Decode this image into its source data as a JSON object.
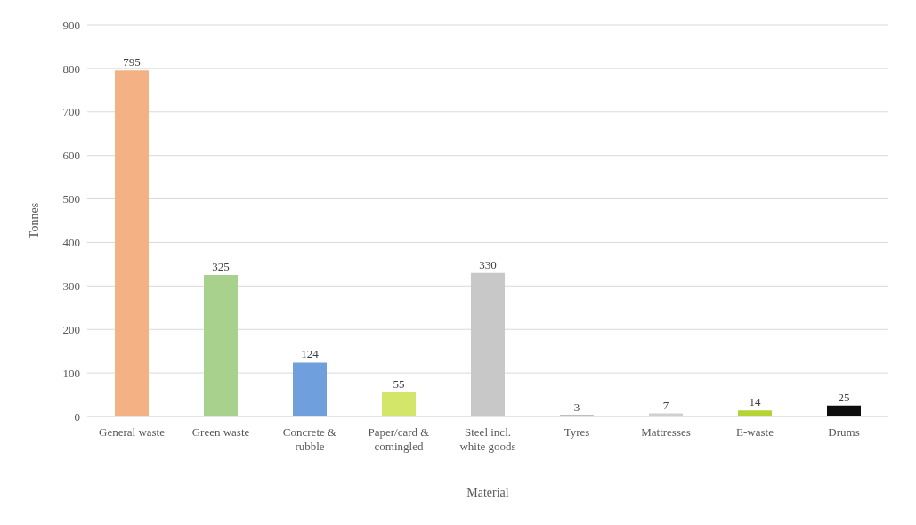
{
  "chart_data": {
    "type": "bar",
    "xlabel": "Material",
    "ylabel": "Tonnes",
    "categories": [
      "General waste",
      "Green waste",
      "Concrete & rubble",
      "Paper/card & comingled",
      "Steel incl. white goods",
      "Tyres",
      "Mattresses",
      "E-waste",
      "Drums"
    ],
    "values": [
      795,
      325,
      124,
      55,
      330,
      3,
      7,
      14,
      25
    ],
    "colors": [
      "#f4b183",
      "#a9d18e",
      "#6f9fdc",
      "#d4e66a",
      "#c8c8c8",
      "#7f7f7f",
      "#d0d0d0",
      "#b5d334",
      "#0d0d0d"
    ],
    "ylim": [
      0,
      900
    ],
    "yticks": [
      0,
      100,
      200,
      300,
      400,
      500,
      600,
      700,
      800,
      900
    ],
    "grid": "y",
    "data_labels": true
  }
}
